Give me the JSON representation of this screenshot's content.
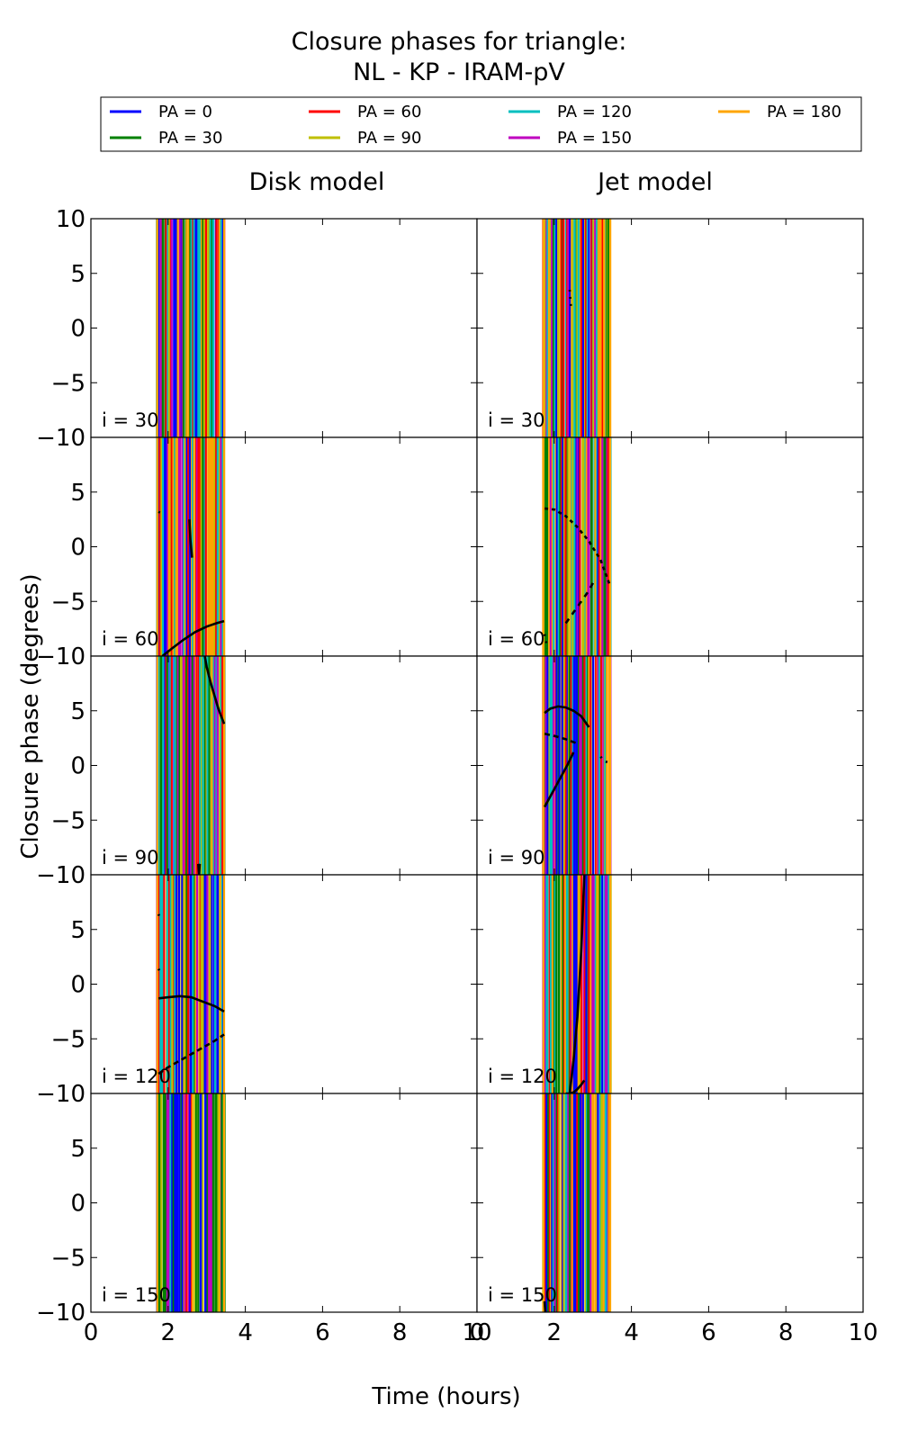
{
  "figure": {
    "title_line1": "Closure phases for triangle:",
    "title_line2": "NL - KP - IRAM-pV",
    "xlabel": "Time (hours)",
    "ylabel": "Closure phase (degrees)"
  },
  "legend": {
    "placement": "top",
    "entries": [
      {
        "label": "PA = 0",
        "color": "#0000ff"
      },
      {
        "label": "PA = 30",
        "color": "#008000"
      },
      {
        "label": "PA = 60",
        "color": "#ff0000"
      },
      {
        "label": "PA = 90",
        "color": "#bfbf00"
      },
      {
        "label": "PA = 120",
        "color": "#00bfbf"
      },
      {
        "label": "PA = 150",
        "color": "#bf00bf"
      },
      {
        "label": "PA = 180",
        "color": "#ffa500"
      }
    ]
  },
  "chart_data": {
    "type": "line",
    "columns": [
      "Disk model",
      "Jet model"
    ],
    "rows": [
      "i = 30",
      "i = 60",
      "i = 90",
      "i = 120",
      "i = 150"
    ],
    "xlim": [
      0,
      10
    ],
    "ylim": [
      -10,
      10
    ],
    "xticks": [
      "0",
      "2",
      "4",
      "6",
      "8",
      "10"
    ],
    "yticks": [
      "−10",
      "−5",
      "0",
      "5",
      "10"
    ],
    "time_range": [
      1.72,
      3.45
    ],
    "panels": [
      {
        "col": 0,
        "row": 0,
        "seed": 11,
        "black_curves": []
      },
      {
        "col": 1,
        "row": 0,
        "seed": 23,
        "black_curves": [
          {
            "dash": "2,6",
            "x": [
              2.4,
              2.42,
              2.44
            ],
            "y": [
              3.5,
              2.5,
              1.8
            ]
          }
        ]
      },
      {
        "col": 0,
        "row": 1,
        "seed": 37,
        "black_curves": [
          {
            "dash": "",
            "x": [
              1.85,
              2.1,
              2.4,
              2.7,
              3.0,
              3.25,
              3.45
            ],
            "y": [
              -10,
              -9.3,
              -8.5,
              -7.8,
              -7.3,
              -7.0,
              -6.8
            ]
          },
          {
            "dash": "2,6",
            "x": [
              1.75,
              1.9
            ],
            "y": [
              3.2,
              2.9
            ]
          },
          {
            "dash": "",
            "x": [
              2.55,
              2.58,
              2.62
            ],
            "y": [
              2.5,
              0.5,
              -1.0
            ]
          }
        ]
      },
      {
        "col": 1,
        "row": 1,
        "seed": 41,
        "black_curves": [
          {
            "dash": "4,4",
            "x": [
              1.75,
              2.0,
              2.3,
              2.6,
              2.9,
              3.2,
              3.45
            ],
            "y": [
              3.5,
              3.4,
              2.8,
              1.8,
              0.5,
              -1.2,
              -3.6
            ]
          },
          {
            "dash": "6,6",
            "x": [
              2.3,
              2.5,
              2.7,
              2.9,
              3.05
            ],
            "y": [
              -7.0,
              -6.0,
              -5.0,
              -4.0,
              -3.0
            ]
          },
          {
            "dash": "2,6",
            "x": [
              1.75,
              1.78,
              1.82
            ],
            "y": [
              -8.0,
              -8.5,
              -9.3
            ]
          }
        ]
      },
      {
        "col": 0,
        "row": 2,
        "seed": 53,
        "black_curves": [
          {
            "dash": "",
            "x": [
              2.95,
              3.0,
              3.1,
              3.2,
              3.3,
              3.45
            ],
            "y": [
              10,
              9.0,
              7.6,
              6.4,
              5.2,
              3.8
            ]
          },
          {
            "dash": "",
            "x": [
              2.78,
              2.8,
              2.82
            ],
            "y": [
              -9.0,
              -10.0,
              -9.0
            ]
          }
        ]
      },
      {
        "col": 1,
        "row": 2,
        "seed": 67,
        "black_curves": [
          {
            "dash": "",
            "x": [
              1.75,
              1.9,
              2.1,
              2.3,
              2.5,
              2.7,
              2.9
            ],
            "y": [
              4.8,
              5.2,
              5.4,
              5.3,
              5.0,
              4.5,
              3.5
            ]
          },
          {
            "dash": "6,4",
            "x": [
              1.75,
              2.0,
              2.3,
              2.6
            ],
            "y": [
              2.9,
              2.7,
              2.4,
              2.0
            ]
          },
          {
            "dash": "",
            "x": [
              1.75,
              1.95,
              2.15,
              2.35,
              2.5
            ],
            "y": [
              -3.8,
              -2.5,
              -1.2,
              0.1,
              1.2
            ]
          },
          {
            "dash": "2,6",
            "x": [
              3.2,
              3.3,
              3.45
            ],
            "y": [
              0.8,
              0.4,
              0.2
            ]
          }
        ]
      },
      {
        "col": 0,
        "row": 3,
        "seed": 71,
        "black_curves": [
          {
            "dash": "",
            "x": [
              1.75,
              2.0,
              2.3,
              2.6,
              2.9,
              3.2,
              3.45
            ],
            "y": [
              -1.3,
              -1.2,
              -1.1,
              -1.2,
              -1.6,
              -2.0,
              -2.5
            ]
          },
          {
            "dash": "6,4",
            "x": [
              1.75,
              2.0,
              2.4,
              2.8,
              3.2,
              3.45
            ],
            "y": [
              -8.2,
              -7.6,
              -6.8,
              -6.0,
              -5.2,
              -4.6
            ]
          },
          {
            "dash": "2,6",
            "x": [
              1.75,
              1.8
            ],
            "y": [
              6.4,
              6.0
            ]
          },
          {
            "dash": "2,6",
            "x": [
              1.75,
              1.8
            ],
            "y": [
              1.4,
              1.1
            ]
          }
        ]
      },
      {
        "col": 1,
        "row": 3,
        "seed": 83,
        "black_curves": [
          {
            "dash": "",
            "x": [
              2.3,
              2.4,
              2.5,
              2.6,
              2.7,
              2.78
            ],
            "y": [
              -10,
              -10,
              -9.9,
              -9.6,
              -9.2,
              -8.8
            ]
          },
          {
            "dash": "",
            "x": [
              2.4,
              2.5,
              2.6,
              2.7,
              2.78
            ],
            "y": [
              -10,
              -7.0,
              -3.0,
              3.0,
              10
            ]
          }
        ]
      },
      {
        "col": 0,
        "row": 4,
        "seed": 97,
        "black_curves": []
      },
      {
        "col": 1,
        "row": 4,
        "seed": 101,
        "black_curves": [
          {
            "dash": "",
            "x": [
              1.75,
              1.77
            ],
            "y": [
              -9.0,
              -10.0
            ]
          }
        ]
      }
    ]
  }
}
